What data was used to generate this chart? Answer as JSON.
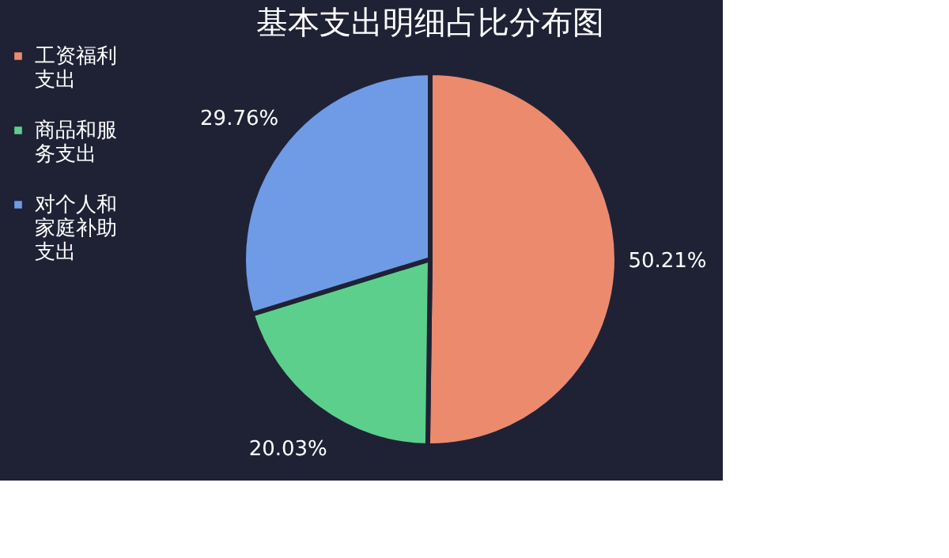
{
  "chart_data": {
    "type": "pie",
    "title": "基本支出明细占比分布图",
    "categories": [
      "工资福利支出",
      "商品和服务支出",
      "对个人和家庭补助支出"
    ],
    "values": [
      50.21,
      20.03,
      29.76
    ],
    "colors": [
      "#ec8a6e",
      "#5ccf8c",
      "#6f9be6"
    ],
    "value_labels": [
      "50.21%",
      "20.03%",
      "29.76%"
    ],
    "legend": "left"
  }
}
